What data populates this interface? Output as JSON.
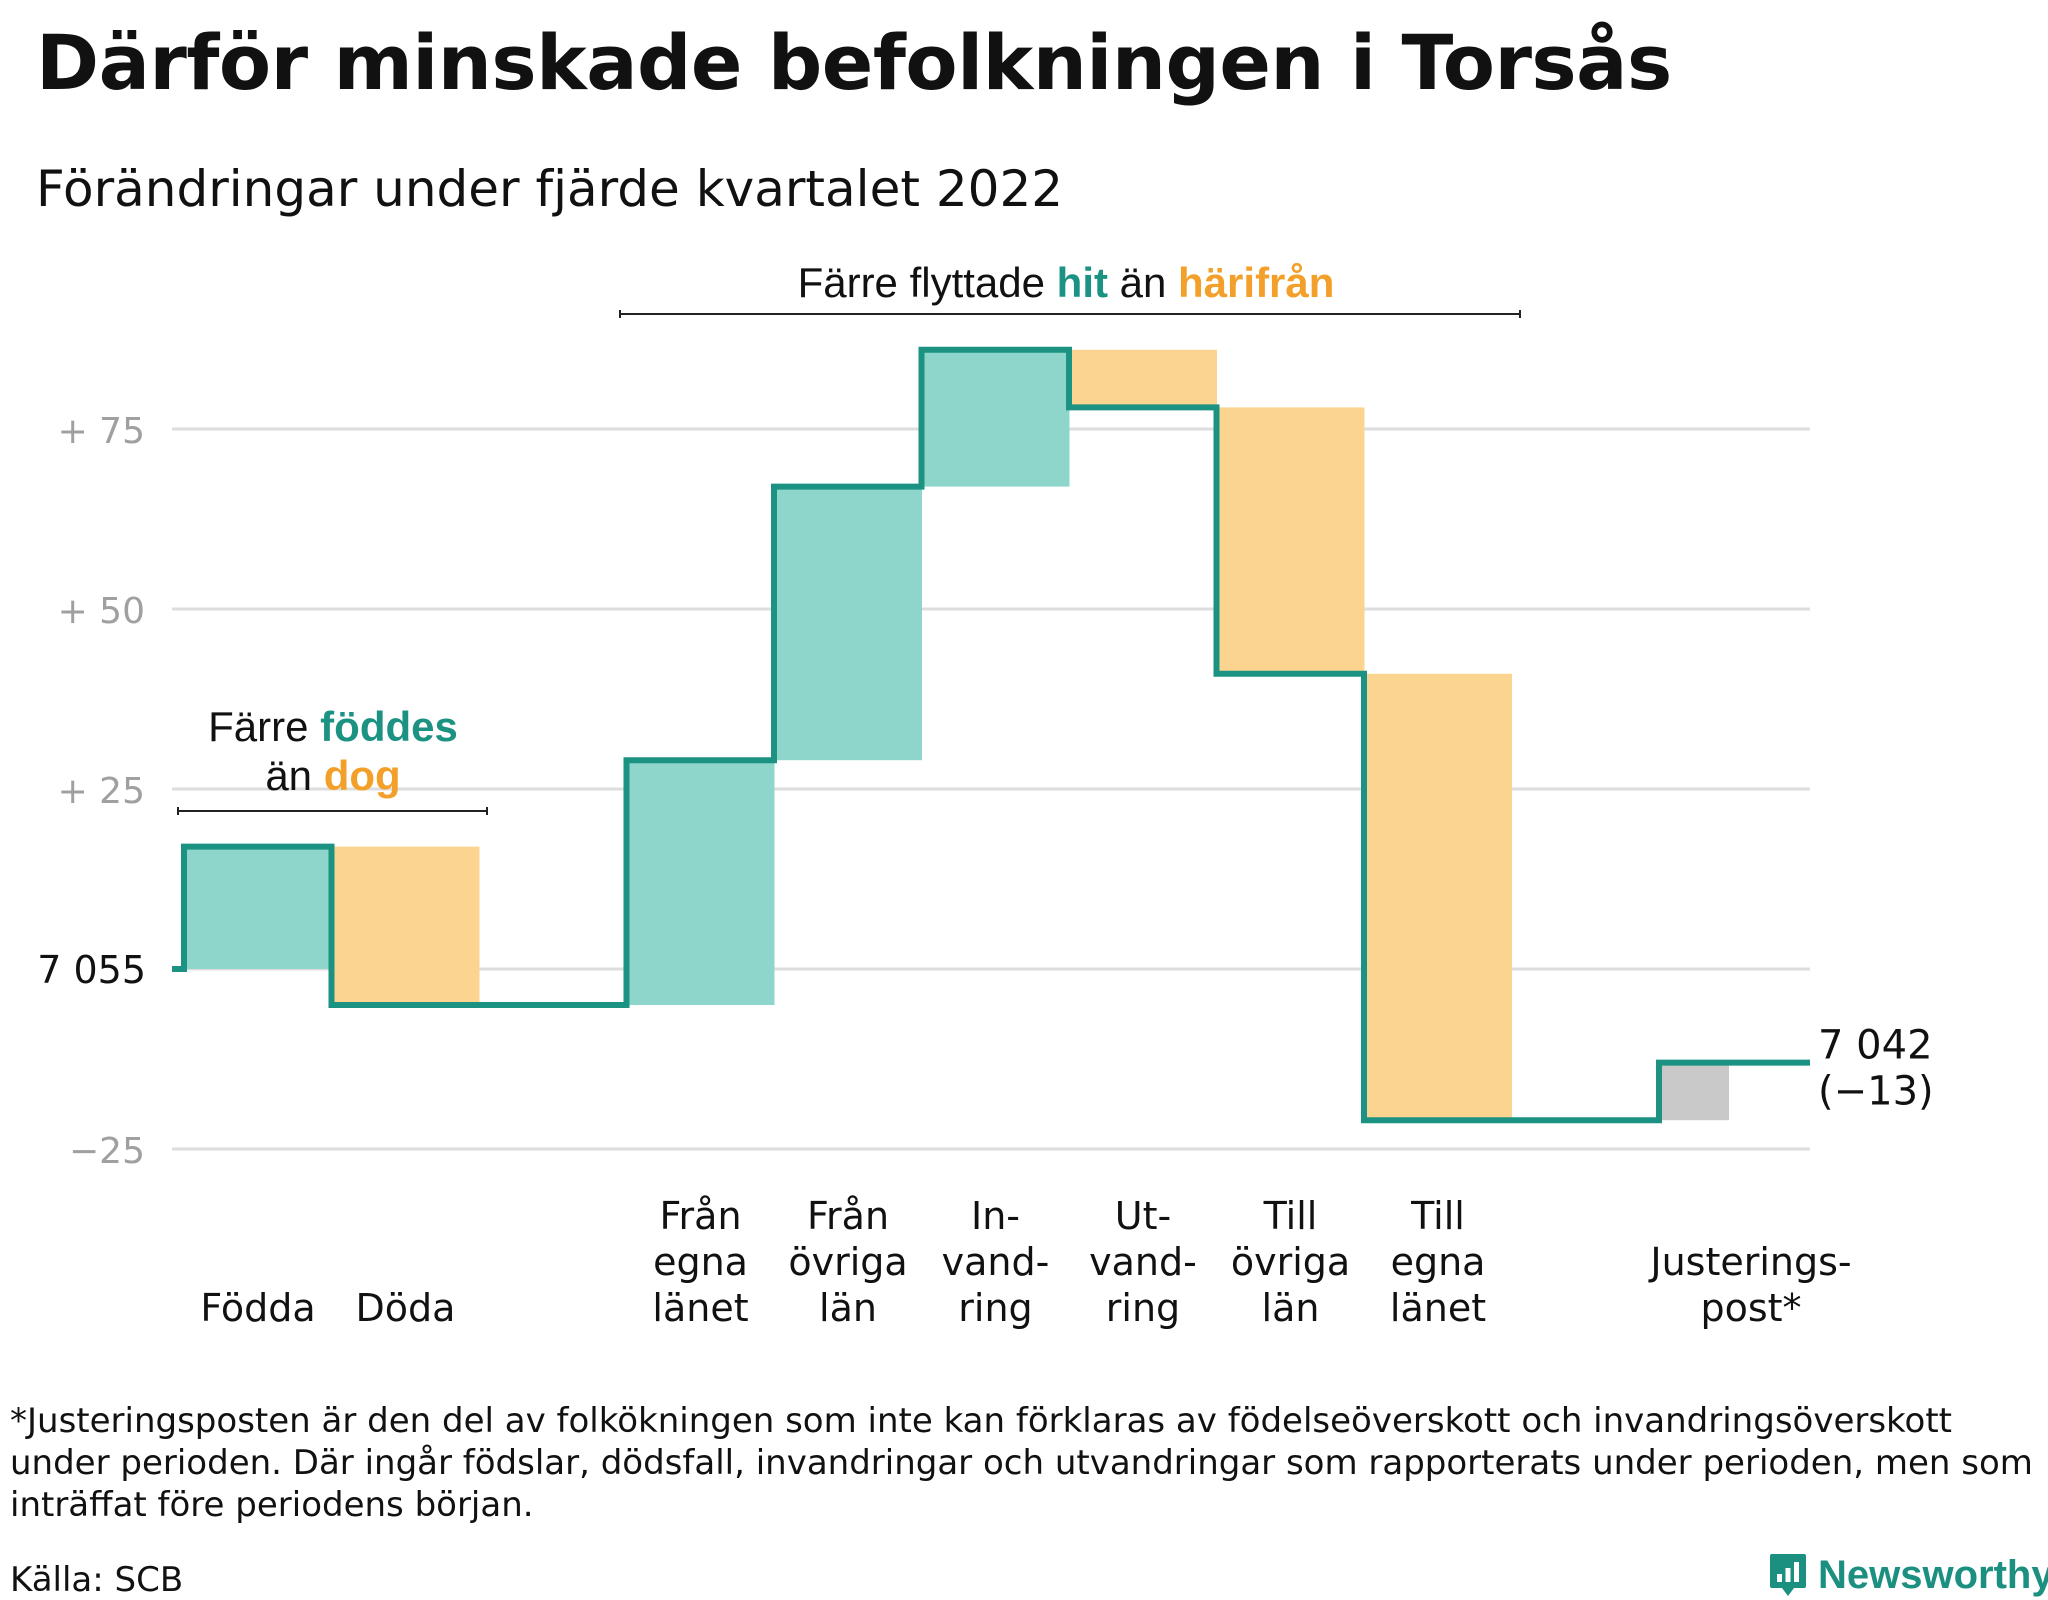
{
  "title": "Därför minskade befolkningen i Torsås",
  "subtitle": "Förändringar under fjärde kvartalet 2022",
  "colors": {
    "increase_fill": "#8ed5cc",
    "decrease_fill": "#fbd590",
    "adjustment_fill": "#c9c9c9",
    "line": "#1b9282",
    "teal_text": "#1b9282",
    "orange_text": "#f2a02a",
    "grid": "#dddddd",
    "tick_text": "#a0a0a0"
  },
  "chart_data": {
    "type": "waterfall",
    "start_value": 7055,
    "start_label": "7 055",
    "end_value": 7042,
    "end_label": "7 042",
    "change_label": "(−13)",
    "ylim": [
      -28,
      95
    ],
    "yticks": [
      {
        "value": 75,
        "label": "+ 75"
      },
      {
        "value": 50,
        "label": "+ 50"
      },
      {
        "value": 25,
        "label": "+ 25"
      },
      {
        "value": 0,
        "label": ""
      },
      {
        "value": -25,
        "label": "−25"
      }
    ],
    "grid": true,
    "categories": [
      {
        "label": [
          "Födda"
        ],
        "value": 17
      },
      {
        "label": [
          "Döda"
        ],
        "value": -22
      },
      {
        "label": [],
        "value": 0,
        "spacer": true
      },
      {
        "label": [
          "Från",
          "egna",
          "länet"
        ],
        "value": 34
      },
      {
        "label": [
          "Från",
          "övriga",
          "län"
        ],
        "value": 38
      },
      {
        "label": [
          "In-",
          "vand-",
          "ring"
        ],
        "value": 19
      },
      {
        "label": [
          "Ut-",
          "vand-",
          "ring"
        ],
        "value": -8
      },
      {
        "label": [
          "Till",
          "övriga",
          "län"
        ],
        "value": -37
      },
      {
        "label": [
          "Till",
          "egna",
          "länet"
        ],
        "value": -62
      },
      {
        "label": [],
        "value": 0,
        "spacer": true
      },
      {
        "label": [
          "Justerings-",
          "post*"
        ],
        "value": 8,
        "adjustment": true
      }
    ],
    "annotations": [
      {
        "parts": [
          {
            "text": "Färre ",
            "style": "plain"
          },
          {
            "text": "föddes",
            "style": "teal"
          }
        ],
        "line2": [
          {
            "text": "än ",
            "style": "plain"
          },
          {
            "text": "dog",
            "style": "orange"
          }
        ]
      },
      {
        "parts": [
          {
            "text": "Färre flyttade ",
            "style": "plain"
          },
          {
            "text": "hit",
            "style": "teal"
          },
          {
            "text": " än ",
            "style": "plain"
          },
          {
            "text": "härifrån",
            "style": "orange"
          }
        ]
      }
    ]
  },
  "footnote": "*Justeringsposten är den del av folkökningen som inte kan förklaras av födelseöverskott och invandringsöverskott under perioden. Där ingår födslar, dödsfall, invandringar och utvandringar som rapporterats under perioden, men som inträffat före periodens början.",
  "source": "Källa: SCB",
  "brand": {
    "name": "Newsworthy",
    "icon": "newsworthy-logo-icon"
  }
}
